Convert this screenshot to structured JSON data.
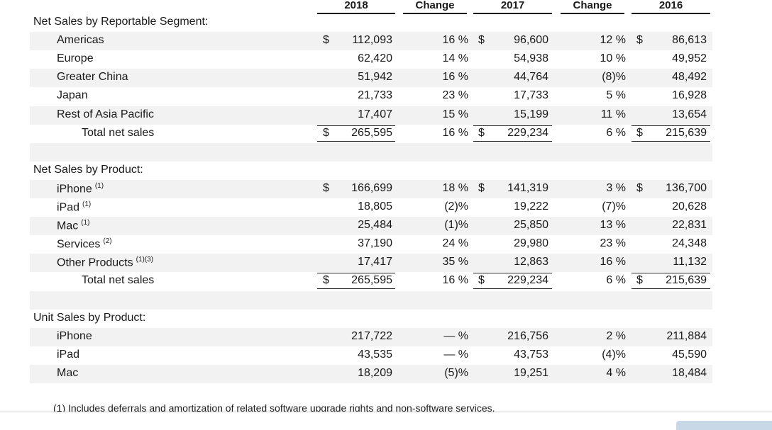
{
  "columns": [
    "2018",
    "Change",
    "2017",
    "Change",
    "2016"
  ],
  "sections": [
    {
      "title": "Net Sales by Reportable Segment:",
      "rows": [
        {
          "label": "Americas",
          "sup": "",
          "dollar2018": "$",
          "v2018": "112,093",
          "c1": "16 %",
          "dollar2017": "$",
          "v2017": "96,600",
          "c2": "12 %",
          "dollar2016": "$",
          "v2016": "86,613",
          "shade": true
        },
        {
          "label": "Europe",
          "sup": "",
          "dollar2018": "",
          "v2018": "62,420",
          "c1": "14 %",
          "dollar2017": "",
          "v2017": "54,938",
          "c2": "10 %",
          "dollar2016": "",
          "v2016": "49,952",
          "shade": false
        },
        {
          "label": "Greater China",
          "sup": "",
          "dollar2018": "",
          "v2018": "51,942",
          "c1": "16 %",
          "dollar2017": "",
          "v2017": "44,764",
          "c2": "(8)%",
          "dollar2016": "",
          "v2016": "48,492",
          "shade": true
        },
        {
          "label": "Japan",
          "sup": "",
          "dollar2018": "",
          "v2018": "21,733",
          "c1": "23 %",
          "dollar2017": "",
          "v2017": "17,733",
          "c2": "5 %",
          "dollar2016": "",
          "v2016": "16,928",
          "shade": false
        },
        {
          "label": "Rest of Asia Pacific",
          "sup": "",
          "dollar2018": "",
          "v2018": "17,407",
          "c1": "15 %",
          "dollar2017": "",
          "v2017": "15,199",
          "c2": "11 %",
          "dollar2016": "",
          "v2016": "13,654",
          "shade": true
        }
      ],
      "total": {
        "label": "Total net sales",
        "dollar2018": "$",
        "v2018": "265,595",
        "c1": "16 %",
        "dollar2017": "$",
        "v2017": "229,234",
        "c2": "6 %",
        "dollar2016": "$",
        "v2016": "215,639"
      }
    },
    {
      "title": "Net Sales by Product:",
      "rows": [
        {
          "label": "iPhone",
          "sup": "(1)",
          "dollar2018": "$",
          "v2018": "166,699",
          "c1": "18 %",
          "dollar2017": "$",
          "v2017": "141,319",
          "c2": "3 %",
          "dollar2016": "$",
          "v2016": "136,700",
          "shade": true
        },
        {
          "label": "iPad",
          "sup": "(1)",
          "dollar2018": "",
          "v2018": "18,805",
          "c1": "(2)%",
          "dollar2017": "",
          "v2017": "19,222",
          "c2": "(7)%",
          "dollar2016": "",
          "v2016": "20,628",
          "shade": false
        },
        {
          "label": "Mac",
          "sup": "(1)",
          "dollar2018": "",
          "v2018": "25,484",
          "c1": "(1)%",
          "dollar2017": "",
          "v2017": "25,850",
          "c2": "13 %",
          "dollar2016": "",
          "v2016": "22,831",
          "shade": true
        },
        {
          "label": "Services",
          "sup": "(2)",
          "dollar2018": "",
          "v2018": "37,190",
          "c1": "24 %",
          "dollar2017": "",
          "v2017": "29,980",
          "c2": "23 %",
          "dollar2016": "",
          "v2016": "24,348",
          "shade": false
        },
        {
          "label": "Other Products",
          "sup": "(1)(3)",
          "dollar2018": "",
          "v2018": "17,417",
          "c1": "35 %",
          "dollar2017": "",
          "v2017": "12,863",
          "c2": "16 %",
          "dollar2016": "",
          "v2016": "11,132",
          "shade": true
        }
      ],
      "total": {
        "label": "Total net sales",
        "dollar2018": "$",
        "v2018": "265,595",
        "c1": "16 %",
        "dollar2017": "$",
        "v2017": "229,234",
        "c2": "6 %",
        "dollar2016": "$",
        "v2016": "215,639"
      }
    },
    {
      "title": "Unit Sales by Product:",
      "rows": [
        {
          "label": "iPhone",
          "sup": "",
          "dollar2018": "",
          "v2018": "217,722",
          "c1": "— %",
          "dollar2017": "",
          "v2017": "216,756",
          "c2": "2 %",
          "dollar2016": "",
          "v2016": "211,884",
          "shade": true
        },
        {
          "label": "iPad",
          "sup": "",
          "dollar2018": "",
          "v2018": "43,535",
          "c1": "— %",
          "dollar2017": "",
          "v2017": "43,753",
          "c2": "(4)%",
          "dollar2016": "",
          "v2016": "45,590",
          "shade": false
        },
        {
          "label": "Mac",
          "sup": "",
          "dollar2018": "",
          "v2018": "18,209",
          "c1": "(5)%",
          "dollar2017": "",
          "v2017": "19,251",
          "c2": "4 %",
          "dollar2016": "",
          "v2016": "18,484",
          "shade": true
        }
      ],
      "total": null
    }
  ],
  "footnote": "(1)   Includes deferrals and amortization of related software upgrade rights and non-software services."
}
